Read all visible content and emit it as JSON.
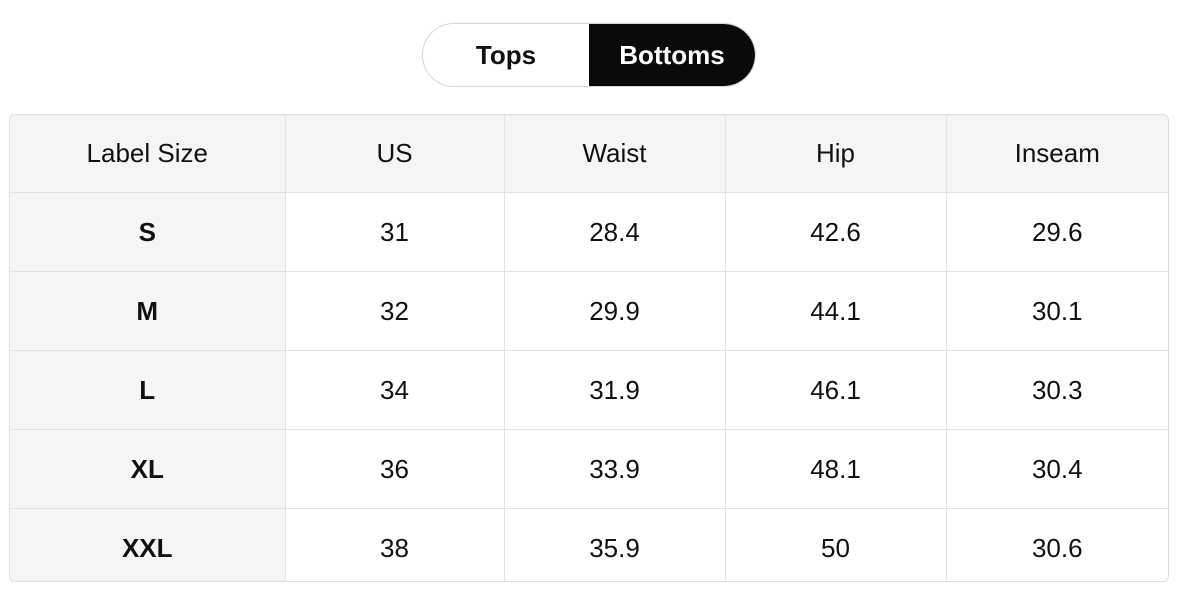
{
  "tabs": [
    "Tops",
    "Bottoms"
  ],
  "table": {
    "header": [
      "Label Size",
      "US",
      "Waist",
      "Hip",
      "Inseam"
    ],
    "rows": [
      [
        "S",
        31,
        28.4,
        42.6,
        29.6
      ],
      [
        "M",
        32,
        29.9,
        44.1,
        30.1
      ],
      [
        "L",
        34,
        31.9,
        46.1,
        30.3
      ],
      [
        "XL",
        36,
        33.9,
        48.1,
        30.4
      ],
      [
        "XXL",
        38,
        35.9,
        50,
        30.6
      ]
    ]
  }
}
